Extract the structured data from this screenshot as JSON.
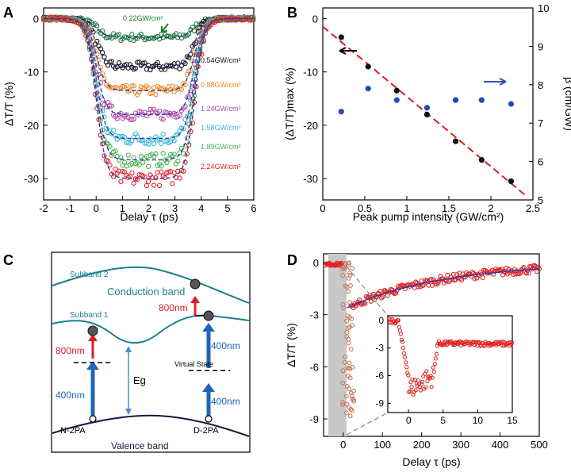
{
  "panels": {
    "A": {
      "label": "A",
      "ylabel": "ΔT/T (%)",
      "xlabel": "Delay τ (ps)",
      "legend": [
        "0.22GW/cm²",
        "0.54GW/cm²",
        "0.88GW/cm²",
        "1.24GW/cm²",
        "1.58GW/cm²",
        "1.89GW/cm²",
        "2.24GW/cm²"
      ],
      "colors": [
        "#1f7a3a",
        "#111111",
        "#f08a24",
        "#b04aa8",
        "#39b8d8",
        "#4cb24c",
        "#e0202a"
      ]
    },
    "B": {
      "label": "B",
      "ylabel_left": "(ΔT/T)max (%)",
      "ylabel_right": "β (cm/GW)",
      "xlabel": "Peak pump intensity (GW/cm²)"
    },
    "C": {
      "label": "C",
      "subband2": "Subband 2",
      "conduction": "Conduction band",
      "subband1": "Subband 1",
      "l800_right": "800nm",
      "l800_left": "800nm",
      "l400_left": "400nm",
      "virtual": "Virtual State",
      "l400_r1": "400nm",
      "l400_r2": "400nm",
      "eg": "Eg",
      "n2pa": "N-2PA",
      "d2pa": "D-2PA",
      "valence": "Valence band"
    },
    "D": {
      "label": "D",
      "ylabel": "ΔT/T (%)",
      "xlabel": "Delay τ (ps)"
    }
  },
  "chart_data": [
    {
      "type": "scatter",
      "panel": "A",
      "title": "",
      "xlabel": "Delay τ (ps)",
      "ylabel": "ΔT/T (%)",
      "xlim": [
        -2,
        6
      ],
      "ylim": [
        -34,
        2
      ],
      "xticks": [
        -2,
        -1,
        0,
        1,
        2,
        3,
        4,
        5,
        6
      ],
      "yticks": [
        0,
        -10,
        -20,
        -30
      ],
      "series": [
        {
          "name": "0.22GW/cm²",
          "depth": -3.5
        },
        {
          "name": "0.54GW/cm²",
          "depth": -9
        },
        {
          "name": "0.88GW/cm²",
          "depth": -13.5
        },
        {
          "name": "1.24GW/cm²",
          "depth": -18
        },
        {
          "name": "1.58GW/cm²",
          "depth": -22.5
        },
        {
          "name": "1.89GW/cm²",
          "depth": -26.5
        },
        {
          "name": "2.24GW/cm²",
          "depth": -30
        }
      ]
    },
    {
      "type": "scatter",
      "panel": "B",
      "xlabel": "Peak pump intensity (GW/cm²)",
      "ylabel": "(ΔT/T)max (%)",
      "ylabel_right": "β (cm/GW)",
      "xlim": [
        0,
        2.5
      ],
      "ylim": [
        -34,
        2
      ],
      "ylim_right": [
        5,
        10
      ],
      "xticks": [
        0,
        0.5,
        1,
        1.5,
        2,
        2.5
      ],
      "yticks": [
        0,
        -10,
        -20,
        -30
      ],
      "yticks_right": [
        5,
        6,
        7,
        8,
        9,
        10
      ],
      "series": [
        {
          "name": "(ΔT/T)max",
          "x": [
            0.22,
            0.54,
            0.88,
            1.24,
            1.58,
            1.89,
            2.24
          ],
          "y": [
            -3.5,
            -9,
            -13.5,
            -18,
            -23,
            -26.5,
            -30.5
          ]
        },
        {
          "name": "β",
          "x": [
            0.22,
            0.54,
            0.88,
            1.24,
            1.58,
            1.89,
            2.24
          ],
          "y": [
            7.3,
            7.9,
            7.6,
            7.4,
            7.6,
            7.6,
            7.5
          ]
        },
        {
          "name": "linear fit",
          "x": [
            0,
            2.4
          ],
          "y": [
            -1.5,
            -33
          ]
        }
      ]
    },
    {
      "type": "scatter",
      "panel": "D",
      "xlabel": "Delay τ (ps)",
      "ylabel": "ΔT/T (%)",
      "xlim": [
        -50,
        500
      ],
      "ylim": [
        -10,
        0.5
      ],
      "xticks": [
        0,
        100,
        200,
        300,
        400,
        500
      ],
      "yticks": [
        0,
        -3,
        -6,
        -9
      ],
      "inset": {
        "xlim": [
          -3,
          15
        ],
        "ylim": [
          -10,
          0.5
        ],
        "xticks": [
          0,
          5,
          10,
          15
        ],
        "yticks": [
          0,
          -3,
          -6,
          -9
        ]
      }
    }
  ]
}
